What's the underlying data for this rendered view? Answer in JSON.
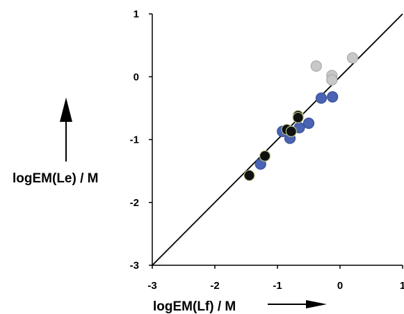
{
  "chart_data": {
    "type": "scatter",
    "xlabel": "logEM(Lf) / M",
    "ylabel": "logEM(Le) / M",
    "xlim": [
      -3,
      1
    ],
    "ylim": [
      -3,
      1
    ],
    "x_ticks": [
      "-3",
      "-2",
      "-1",
      "0",
      "1"
    ],
    "y_ticks": [
      "-3",
      "-2",
      "-1",
      "0",
      "1"
    ],
    "reference_line": {
      "type": "y=x",
      "from": [
        -3,
        -3
      ],
      "to": [
        1,
        1
      ]
    },
    "grid": false,
    "legend": "none",
    "series": [
      {
        "color": "#c8c8c8",
        "stroke": "#aaaaaa",
        "points": [
          [
            -0.38,
            0.17
          ],
          [
            -0.13,
            0.02
          ],
          [
            -0.13,
            -0.05
          ],
          [
            0.2,
            0.3
          ]
        ]
      },
      {
        "color": "#4a63b3",
        "stroke": "#3a4f97",
        "points": [
          [
            -1.27,
            -1.39
          ],
          [
            -0.92,
            -0.87
          ],
          [
            -0.8,
            -0.98
          ],
          [
            -0.65,
            -0.81
          ],
          [
            -0.5,
            -0.74
          ],
          [
            -0.3,
            -0.34
          ],
          [
            -0.12,
            -0.32
          ]
        ]
      },
      {
        "color": "#101010",
        "stroke": "#b7c58a",
        "points": [
          [
            -1.45,
            -1.57
          ],
          [
            -1.2,
            -1.26
          ],
          [
            -0.85,
            -0.84
          ],
          [
            -0.78,
            -0.87
          ],
          [
            -0.67,
            -0.62
          ],
          [
            -0.67,
            -0.65
          ]
        ]
      }
    ]
  }
}
